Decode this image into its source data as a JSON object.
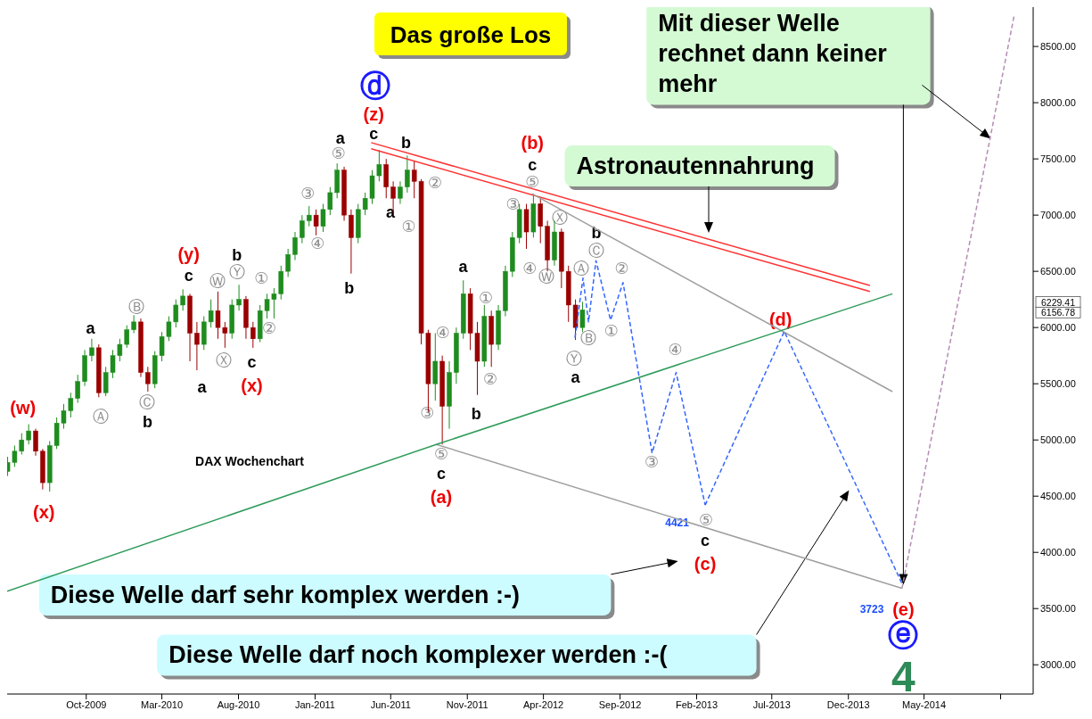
{
  "chart_data": {
    "type": "candlestick",
    "title": "Das große Los",
    "subtitle": "DAX Wochenchart",
    "x": [
      "2009-04-27",
      "2009-05-11",
      "2009-05-25",
      "2009-06-08",
      "2009-06-22",
      "2009-07-06",
      "2009-07-20",
      "2009-08-03",
      "2009-08-17",
      "2009-08-31",
      "2009-09-14",
      "2009-09-28",
      "2009-10-12",
      "2009-10-26",
      "2009-11-09",
      "2009-11-23",
      "2009-12-07",
      "2009-12-21",
      "2010-01-04",
      "2010-01-18",
      "2010-02-01",
      "2010-02-15",
      "2010-03-01",
      "2010-03-15",
      "2010-03-29",
      "2010-04-12",
      "2010-04-26",
      "2010-05-10",
      "2010-05-24",
      "2010-06-07",
      "2010-06-21",
      "2010-07-05",
      "2010-07-19",
      "2010-08-02",
      "2010-08-16",
      "2010-08-30",
      "2010-09-13",
      "2010-09-27",
      "2010-10-11",
      "2010-10-25",
      "2010-11-08",
      "2010-11-22",
      "2010-12-06",
      "2010-12-20",
      "2011-01-03",
      "2011-01-17",
      "2011-01-31",
      "2011-02-14",
      "2011-02-28",
      "2011-03-14",
      "2011-03-28",
      "2011-04-11",
      "2011-04-25",
      "2011-05-09",
      "2011-05-23",
      "2011-06-06",
      "2011-06-20",
      "2011-07-04",
      "2011-07-18",
      "2011-08-01",
      "2011-08-15",
      "2011-08-29",
      "2011-09-12",
      "2011-09-26",
      "2011-10-10",
      "2011-10-24",
      "2011-11-07",
      "2011-11-21",
      "2011-12-05",
      "2011-12-19",
      "2012-01-02",
      "2012-01-16",
      "2012-01-30",
      "2012-02-13",
      "2012-02-27",
      "2012-03-12",
      "2012-03-26",
      "2012-04-09",
      "2012-04-23",
      "2012-05-07",
      "2012-05-21",
      "2012-06-04",
      "2012-06-18"
    ],
    "ohlc": [
      [
        4720,
        4850,
        4680,
        4800
      ],
      [
        4800,
        4950,
        4760,
        4900
      ],
      [
        4900,
        5060,
        4870,
        5000
      ],
      [
        5000,
        5140,
        4960,
        5080
      ],
      [
        5080,
        5100,
        4860,
        4900
      ],
      [
        4900,
        4920,
        4560,
        4620
      ],
      [
        4620,
        4990,
        4540,
        4950
      ],
      [
        4950,
        5200,
        4920,
        5150
      ],
      [
        5150,
        5320,
        5100,
        5260
      ],
      [
        5260,
        5420,
        5200,
        5370
      ],
      [
        5370,
        5580,
        5330,
        5520
      ],
      [
        5520,
        5800,
        5480,
        5750
      ],
      [
        5750,
        5900,
        5700,
        5820
      ],
      [
        5820,
        5850,
        5380,
        5420
      ],
      [
        5420,
        5650,
        5390,
        5600
      ],
      [
        5600,
        5800,
        5550,
        5750
      ],
      [
        5750,
        5900,
        5700,
        5850
      ],
      [
        5850,
        6020,
        5820,
        5980
      ],
      [
        5980,
        6110,
        5950,
        6050
      ],
      [
        6050,
        6080,
        5560,
        5600
      ],
      [
        5600,
        5650,
        5430,
        5500
      ],
      [
        5500,
        5790,
        5460,
        5750
      ],
      [
        5750,
        5960,
        5700,
        5920
      ],
      [
        5920,
        6100,
        5880,
        6050
      ],
      [
        6050,
        6250,
        6000,
        6200
      ],
      [
        6200,
        6340,
        6150,
        6280
      ],
      [
        6280,
        6300,
        5700,
        5950
      ],
      [
        5950,
        6050,
        5620,
        5850
      ],
      [
        5850,
        6100,
        5800,
        6050
      ],
      [
        6050,
        6250,
        6000,
        6150
      ],
      [
        6150,
        6320,
        5900,
        6000
      ],
      [
        6000,
        6050,
        5820,
        5950
      ],
      [
        5950,
        6250,
        5900,
        6200
      ],
      [
        6200,
        6380,
        6150,
        6250
      ],
      [
        6250,
        6280,
        5900,
        6000
      ],
      [
        6000,
        6050,
        5820,
        5900
      ],
      [
        5900,
        6200,
        5870,
        6150
      ],
      [
        6150,
        6300,
        6080,
        6250
      ],
      [
        6250,
        6350,
        6080,
        6300
      ],
      [
        6300,
        6550,
        6250,
        6500
      ],
      [
        6500,
        6700,
        6450,
        6650
      ],
      [
        6650,
        6850,
        6600,
        6800
      ],
      [
        6800,
        7000,
        6750,
        6950
      ],
      [
        6950,
        7080,
        6900,
        7000
      ],
      [
        7000,
        7050,
        6820,
        6900
      ],
      [
        6900,
        7100,
        6850,
        7050
      ],
      [
        7050,
        7250,
        7000,
        7200
      ],
      [
        7200,
        7460,
        7150,
        7400
      ],
      [
        7400,
        7430,
        6950,
        7000
      ],
      [
        7000,
        7050,
        6480,
        6800
      ],
      [
        6800,
        7100,
        6750,
        7050
      ],
      [
        7050,
        7200,
        7000,
        7150
      ],
      [
        7150,
        7400,
        7100,
        7350
      ],
      [
        7350,
        7580,
        7300,
        7450
      ],
      [
        7450,
        7500,
        7150,
        7250
      ],
      [
        7250,
        7300,
        7020,
        7150
      ],
      [
        7150,
        7300,
        7100,
        7250
      ],
      [
        7250,
        7530,
        7200,
        7400
      ],
      [
        7400,
        7480,
        7150,
        7300
      ],
      [
        7300,
        7320,
        5850,
        5950
      ],
      [
        5950,
        5980,
        5250,
        5500
      ],
      [
        5500,
        5950,
        5350,
        5700
      ],
      [
        5700,
        5750,
        4960,
        5300
      ],
      [
        5300,
        5700,
        5100,
        5600
      ],
      [
        5600,
        6000,
        5500,
        5950
      ],
      [
        5950,
        6420,
        5900,
        6300
      ],
      [
        6300,
        6350,
        5800,
        5950
      ],
      [
        5950,
        6050,
        5400,
        5700
      ],
      [
        5700,
        6200,
        5650,
        6100
      ],
      [
        6100,
        6150,
        5650,
        5850
      ],
      [
        5850,
        6200,
        5800,
        6150
      ],
      [
        6150,
        6550,
        6100,
        6500
      ],
      [
        6500,
        6850,
        6450,
        6800
      ],
      [
        6800,
        7100,
        6750,
        7050
      ],
      [
        7050,
        7100,
        6700,
        6850
      ],
      [
        6850,
        7190,
        6800,
        7100
      ],
      [
        7100,
        7150,
        6750,
        6900
      ],
      [
        6900,
        6950,
        6500,
        6600
      ],
      [
        6600,
        6950,
        6550,
        6850
      ],
      [
        6850,
        6880,
        6350,
        6500
      ],
      [
        6500,
        6550,
        6050,
        6200
      ],
      [
        6200,
        6250,
        5890,
        6000
      ],
      [
        6000,
        6229.41,
        5960,
        6156.78
      ]
    ],
    "series": [
      {
        "type": "line",
        "color": "#ff3333",
        "line_style": "solid",
        "x": [
          "2011-04-23",
          "2014-01-13"
        ],
        "values": [
          7645,
          6375
        ]
      },
      {
        "type": "line",
        "color": "#ff3333",
        "line_style": "solid",
        "x": [
          "2011-04-23",
          "2014-01-13"
        ],
        "values": [
          7590,
          6320
        ]
      },
      {
        "type": "line",
        "color": "#a0a0a0",
        "line_style": "solid",
        "x": [
          "2012-03-09",
          "2014-02-27"
        ],
        "values": [
          7190,
          5430
        ]
      },
      {
        "type": "line",
        "color": "#a0a0a0",
        "line_style": "solid",
        "x": [
          "2011-08-31",
          "2014-03-18"
        ],
        "values": [
          4960,
          3680
        ]
      },
      {
        "type": "line",
        "color": "#2e9b5a",
        "line_style": "solid",
        "x": [
          "2009-04-26",
          "2011-08-31",
          "2014-02-27"
        ],
        "values": [
          3655,
          4960,
          6300
        ]
      },
      {
        "type": "line",
        "color": "#3366ff",
        "line_style": "dashed",
        "x": [
          "2012-06-03",
          "2012-06-19",
          "2012-06-30",
          "2012-07-15",
          "2012-08-13",
          "2012-09-07",
          "2012-11-04",
          "2012-12-22",
          "2013-02-18"
        ],
        "values": [
          5910,
          6440,
          6050,
          6595,
          6066,
          6400,
          4883,
          5600,
          4421
        ]
      },
      {
        "type": "line",
        "color": "#3366ff",
        "line_style": "dashed",
        "x": [
          "2013-02-18",
          "2013-07-26",
          "2014-03-18"
        ],
        "values": [
          4421,
          5965,
          3723
        ]
      },
      {
        "type": "line",
        "color": "#b48cb4",
        "line_style": "dashed",
        "x": [
          "2014-03-18",
          "2014-10-28"
        ],
        "values": [
          3680,
          8775
        ]
      }
    ],
    "xlim": [
      "2009-04-26",
      "2014-12-05"
    ],
    "xticks": [
      {
        "value": "2009-10-01",
        "label": "Oct-2009"
      },
      {
        "value": "2010-03-01",
        "label": "Mar-2010"
      },
      {
        "value": "2010-08-01",
        "label": "Aug-2010"
      },
      {
        "value": "2011-01-01",
        "label": "Jan-2011"
      },
      {
        "value": "2011-06-01",
        "label": "Jun-2011"
      },
      {
        "value": "2011-11-01",
        "label": "Nov-2011"
      },
      {
        "value": "2012-04-01",
        "label": "Apr-2012"
      },
      {
        "value": "2012-09-01",
        "label": "Sep-2012"
      },
      {
        "value": "2013-02-01",
        "label": "Feb-2013"
      },
      {
        "value": "2013-07-01",
        "label": "Jul-2013"
      },
      {
        "value": "2013-12-01",
        "label": "Dec-2013"
      },
      {
        "value": "2014-05-01",
        "label": "May-2014"
      },
      {
        "value": "2014-10-01",
        "label": null
      }
    ],
    "ylim": [
      2740,
      8850
    ],
    "yticks": [
      {
        "value": 3000,
        "label": "3000.00"
      },
      {
        "value": 3500,
        "label": "3500.00"
      },
      {
        "value": 4000,
        "label": "4000.00"
      },
      {
        "value": 4500,
        "label": "4500.00"
      },
      {
        "value": 5000,
        "label": "5000.00"
      },
      {
        "value": 5500,
        "label": "5500.00"
      },
      {
        "value": 6000,
        "label": "6000.00"
      },
      {
        "value": 6500,
        "label": "6500.00"
      },
      {
        "value": 7000,
        "label": "7000.00"
      },
      {
        "value": 7500,
        "label": "7500.00"
      },
      {
        "value": 8000,
        "label": "8000.00"
      },
      {
        "value": 8500,
        "label": "8500.00"
      }
    ],
    "annotations": [
      "Astronautennahrung",
      "Mit dieser Welle rechnet dann keiner mehr",
      "Diese Welle darf sehr komplex werden :-)",
      "Diese Welle darf noch komplexer werden :-(",
      "(w)",
      "(x)",
      "a",
      "Ⓐ",
      "Ⓑ",
      "Ⓒ",
      "b",
      "(y)",
      "c",
      "a",
      "Ⓦ",
      "Ⓧ",
      "Ⓨ",
      "b",
      "c",
      "(x)",
      "①",
      "②",
      "③",
      "④",
      "⑤",
      "a",
      "b",
      "(z)",
      "c",
      "ⓓ",
      "b",
      "②",
      "a",
      "①",
      "④",
      "③",
      "⑤",
      "c",
      "(a)",
      "a",
      "①",
      "②",
      "b",
      "③",
      "④",
      "⑤",
      "c",
      "(b)",
      "Ⓧ",
      "Ⓦ",
      "Ⓨ",
      "a",
      "Ⓐ",
      "Ⓑ",
      "Ⓒ",
      "b",
      "①",
      "②",
      "③",
      "④",
      "⑤",
      "4421",
      "c",
      "(c)",
      "(d)",
      "3723",
      "(e)",
      "ⓔ",
      "4",
      "6229.41",
      "6156.78"
    ]
  }
}
